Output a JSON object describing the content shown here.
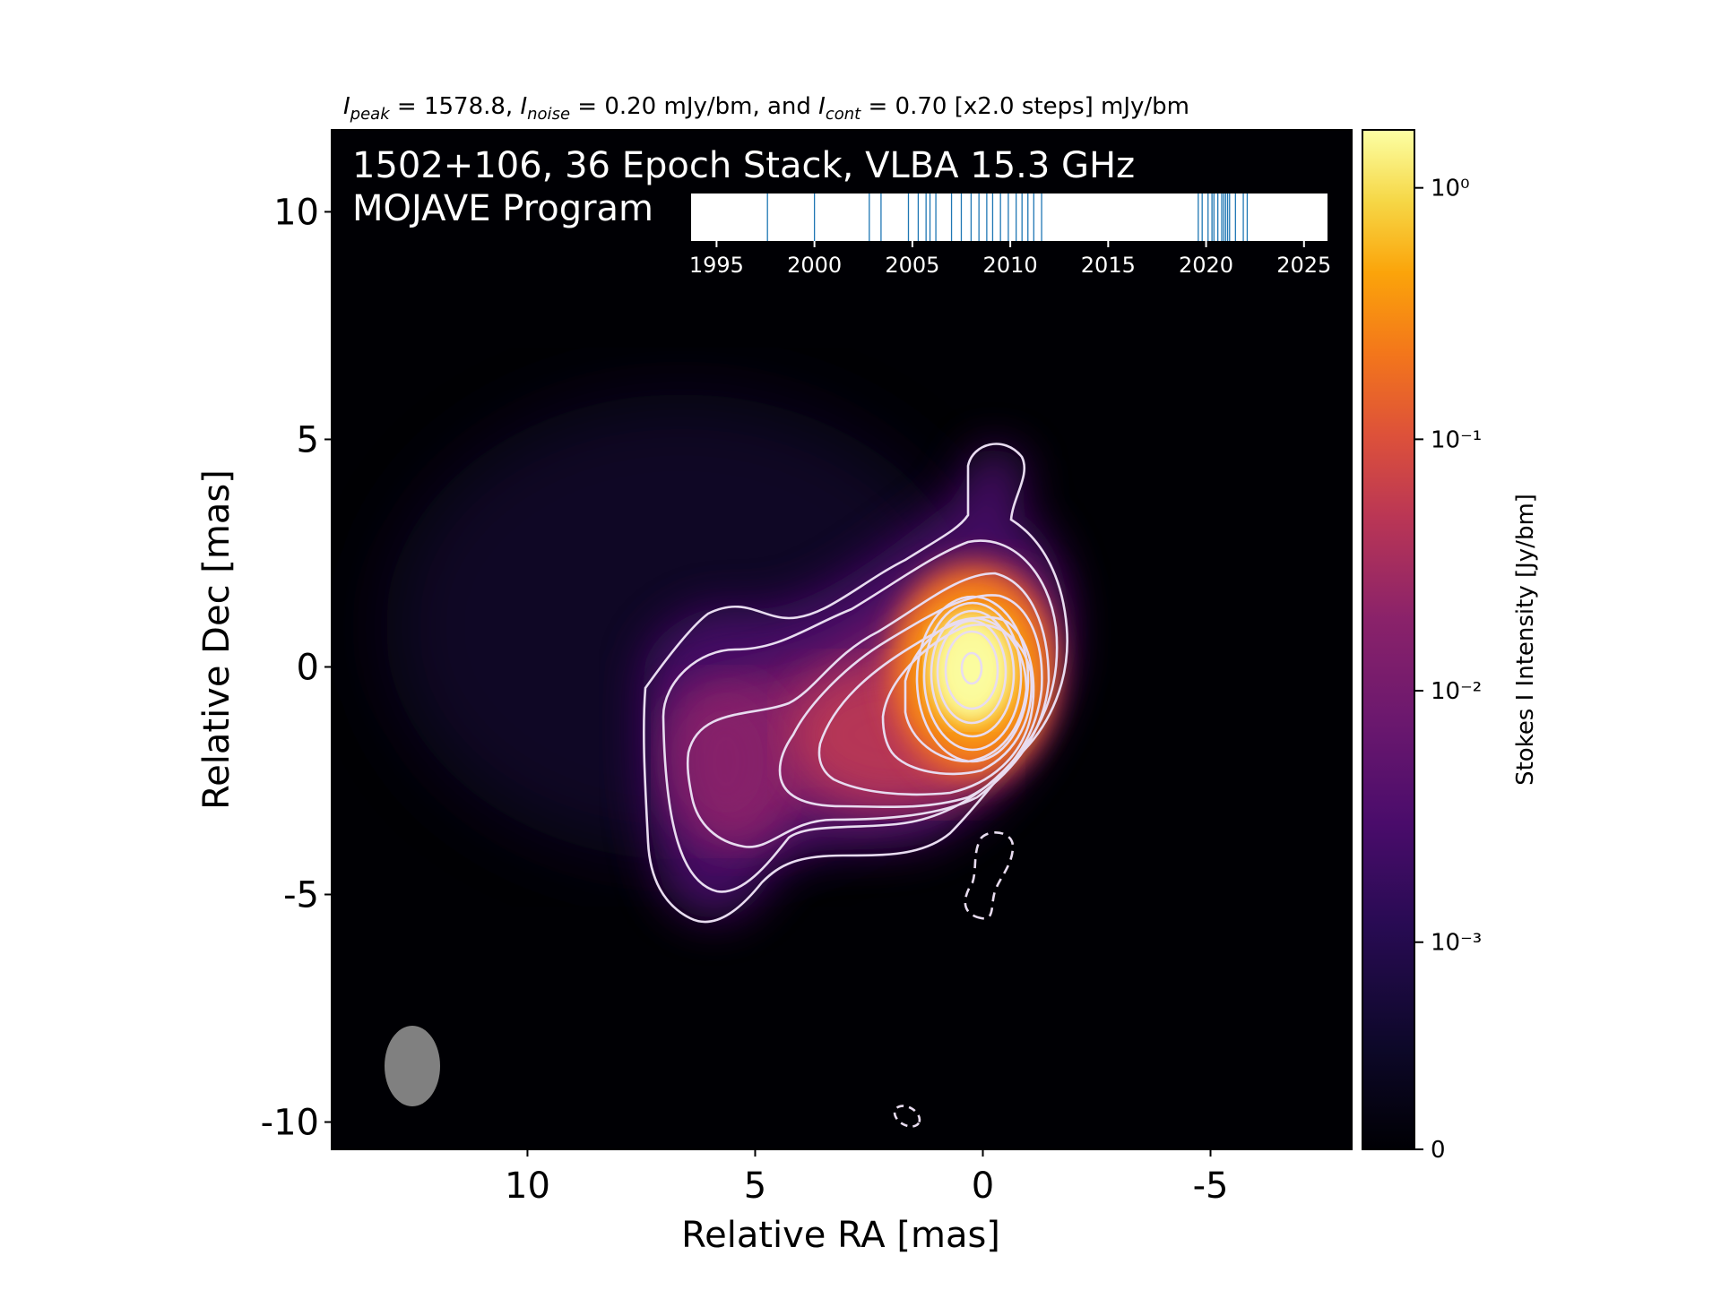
{
  "chart_data": {
    "type": "heatmap",
    "title": "1502+106, 36 Epoch Stack, VLBA 15.3 GHz",
    "subtitle": "MOJAVE Program",
    "header": {
      "peak_sym": "I",
      "peak_sub": "peak",
      "peak_text": " = 1578.8, ",
      "noise_sym": "I",
      "noise_sub": "noise",
      "noise_text": " = 0.20 mJy/bm, and ",
      "cont_sym": "I",
      "cont_sub": "cont",
      "cont_text": " = 0.70 [x2.0 steps] mJy/bm"
    },
    "xlabel": "Relative RA [mas]",
    "ylabel": "Relative Dec [mas]",
    "xlim": [
      14.3,
      -8.1
    ],
    "ylim": [
      -10.6,
      11.8
    ],
    "xticks": [
      10,
      5,
      0,
      -5
    ],
    "xtick_labels": [
      "10",
      "5",
      "0",
      "-5"
    ],
    "yticks": [
      10,
      5,
      0,
      -5,
      -10
    ],
    "ytick_labels": [
      "10",
      "5",
      "0",
      "-5",
      "-10"
    ],
    "colorbar": {
      "label": "Stokes I Intensity [Jy/bm]",
      "tick_labels": [
        "10⁰",
        "10⁻¹",
        "10⁻²",
        "10⁻³",
        "0"
      ],
      "tick_values": [
        1,
        0.1,
        0.01,
        0.001,
        0
      ],
      "colormap": "inferno"
    },
    "peak_position": [
      0,
      0
    ],
    "beam": {
      "center": [
        12.3,
        -8.9
      ],
      "major_mas": 1.75,
      "minor_mas": 1.2,
      "color": "#808080"
    },
    "contour_color": "#e8dcf0",
    "epoch_timeline": {
      "xlim": [
        1993.7,
        2026.2
      ],
      "ticks": [
        1995,
        2000,
        2005,
        2010,
        2015,
        2020,
        2025
      ],
      "tick_labels": [
        "1995",
        "2000",
        "2005",
        "2010",
        "2015",
        "2020",
        "2025"
      ],
      "epochs": [
        1997.6,
        2000.0,
        2002.8,
        2003.4,
        2004.8,
        2005.3,
        2005.7,
        2005.9,
        2006.2,
        2007.0,
        2007.5,
        2008.0,
        2008.4,
        2008.8,
        2009.1,
        2009.5,
        2009.9,
        2010.3,
        2010.6,
        2010.9,
        2011.2,
        2011.6,
        2019.6,
        2019.8,
        2020.1,
        2020.3,
        2020.6,
        2020.8,
        2021.0,
        2021.2,
        2021.5,
        2021.9,
        2022.1,
        2020.9,
        2021.1,
        2020.4
      ],
      "line_color": "#1f77b4"
    }
  }
}
